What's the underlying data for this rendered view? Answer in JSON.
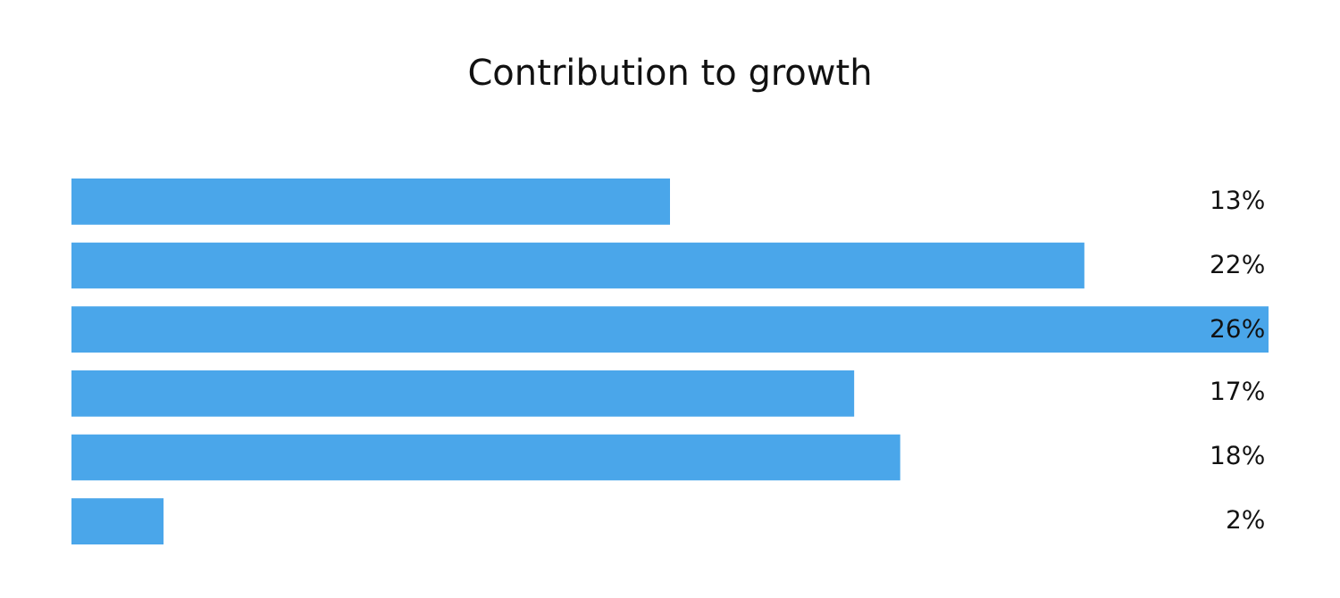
{
  "chart_data": {
    "type": "bar",
    "orientation": "horizontal",
    "title": "Contribution to growth",
    "categories": [
      null,
      null,
      null,
      null,
      null,
      null
    ],
    "values": [
      13,
      22,
      26,
      17,
      18,
      2
    ],
    "value_labels": [
      "13%",
      "22%",
      "26%",
      "17%",
      "18%",
      "2%"
    ],
    "color": "#4aa6ea",
    "xlim": [
      0,
      26
    ],
    "tick_labels": false,
    "legend": false
  }
}
